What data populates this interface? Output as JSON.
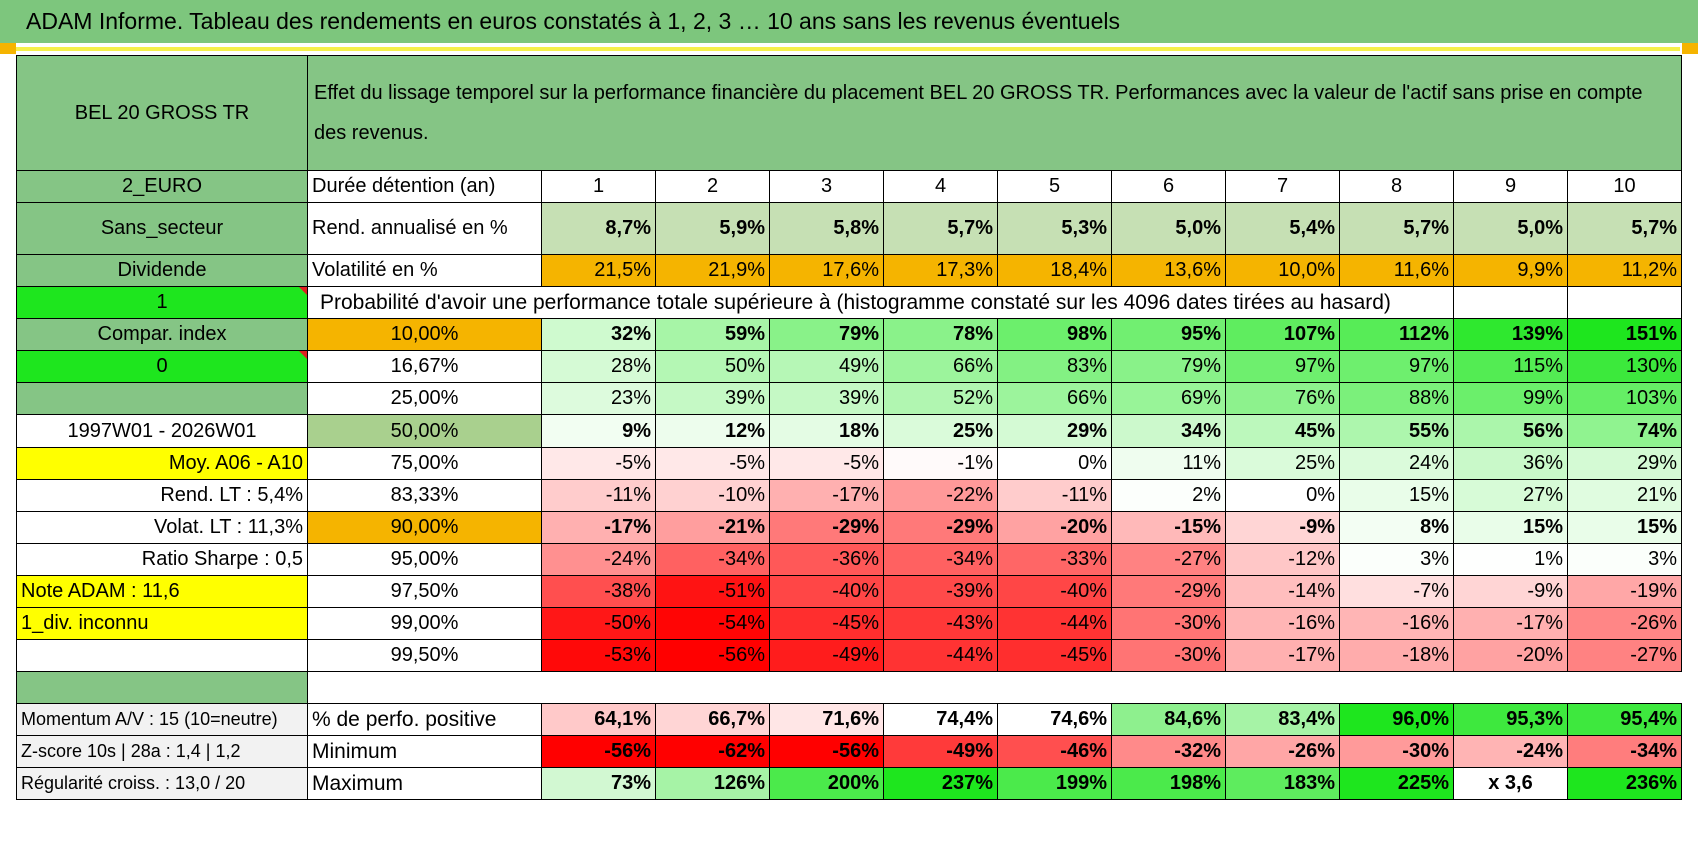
{
  "banner": "ADAM Informe. Tableau des rendements en euros constatés à 1, 2, 3 … 10 ans sans les revenus éventuels",
  "fund_name": "BEL 20 GROSS TR",
  "description": "Effet du lissage temporel sur la performance financière du placement BEL 20 GROSS TR. Performances avec la valeur de l'actif sans prise en compte des revenus.",
  "side": {
    "currency": "2_EURO",
    "sector": "Sans_secteur",
    "dividend": "Dividende",
    "dividend_value": "1",
    "compar_index": "Compar. index",
    "compar_value": "0",
    "period": "1997W01 - 2026W01",
    "moy": "Moy. A06 - A10",
    "rend_lt": "Rend. LT :   5,4%",
    "volat_lt": "Volat. LT :   11,3%",
    "sharpe": "Ratio Sharpe :    0,5",
    "note": "Note ADAM : 11,6",
    "div_unknown": "1_div. inconnu"
  },
  "header": {
    "duration_label": "Durée détention (an)",
    "years": [
      "1",
      "2",
      "3",
      "4",
      "5",
      "6",
      "7",
      "8",
      "9",
      "10"
    ]
  },
  "rend_row": {
    "label": "Rend. annualisé en %",
    "values": [
      "8,7%",
      "5,9%",
      "5,8%",
      "5,7%",
      "5,3%",
      "5,0%",
      "5,4%",
      "5,7%",
      "5,0%",
      "5,7%"
    ]
  },
  "vol_row": {
    "label": "Volatilité en %",
    "values": [
      "21,5%",
      "21,9%",
      "17,6%",
      "17,3%",
      "18,4%",
      "13,6%",
      "10,0%",
      "11,6%",
      "9,9%",
      "11,2%"
    ]
  },
  "prob_title": "Probabilité d'avoir une performance totale supérieure à (histogramme constaté sur les 4096 dates tirées au hasard)",
  "prob_rows": [
    {
      "pct": "10,00%",
      "values": [
        "32%",
        "59%",
        "79%",
        "78%",
        "98%",
        "95%",
        "107%",
        "112%",
        "139%",
        "151%"
      ]
    },
    {
      "pct": "16,67%",
      "values": [
        "28%",
        "50%",
        "49%",
        "66%",
        "83%",
        "79%",
        "97%",
        "97%",
        "115%",
        "130%"
      ]
    },
    {
      "pct": "25,00%",
      "values": [
        "23%",
        "39%",
        "39%",
        "52%",
        "66%",
        "69%",
        "76%",
        "88%",
        "99%",
        "103%"
      ]
    },
    {
      "pct": "50,00%",
      "values": [
        "9%",
        "12%",
        "18%",
        "25%",
        "29%",
        "34%",
        "45%",
        "55%",
        "56%",
        "74%"
      ]
    },
    {
      "pct": "75,00%",
      "values": [
        "-5%",
        "-5%",
        "-5%",
        "-1%",
        "0%",
        "11%",
        "25%",
        "24%",
        "36%",
        "29%"
      ]
    },
    {
      "pct": "83,33%",
      "values": [
        "-11%",
        "-10%",
        "-17%",
        "-22%",
        "-11%",
        "2%",
        "0%",
        "15%",
        "27%",
        "21%"
      ]
    },
    {
      "pct": "90,00%",
      "values": [
        "-17%",
        "-21%",
        "-29%",
        "-29%",
        "-20%",
        "-15%",
        "-9%",
        "8%",
        "15%",
        "15%"
      ]
    },
    {
      "pct": "95,00%",
      "values": [
        "-24%",
        "-34%",
        "-36%",
        "-34%",
        "-33%",
        "-27%",
        "-12%",
        "3%",
        "1%",
        "3%"
      ]
    },
    {
      "pct": "97,50%",
      "values": [
        "-38%",
        "-51%",
        "-40%",
        "-39%",
        "-40%",
        "-29%",
        "-14%",
        "-7%",
        "-9%",
        "-19%"
      ]
    },
    {
      "pct": "99,00%",
      "values": [
        "-50%",
        "-54%",
        "-45%",
        "-43%",
        "-44%",
        "-30%",
        "-16%",
        "-16%",
        "-17%",
        "-26%"
      ]
    },
    {
      "pct": "99,50%",
      "values": [
        "-53%",
        "-56%",
        "-49%",
        "-44%",
        "-45%",
        "-30%",
        "-17%",
        "-18%",
        "-20%",
        "-27%"
      ]
    }
  ],
  "stats": [
    {
      "side": "Momentum A/V : 15 (10=neutre)",
      "label": "% de perfo. positive",
      "values": [
        "64,1%",
        "66,7%",
        "71,6%",
        "74,4%",
        "74,6%",
        "84,6%",
        "83,4%",
        "96,0%",
        "95,3%",
        "95,4%"
      ]
    },
    {
      "side": "Z-score 10s | 28a : 1,4 | 1,2",
      "label": "Minimum",
      "values": [
        "-56%",
        "-62%",
        "-56%",
        "-49%",
        "-46%",
        "-32%",
        "-26%",
        "-30%",
        "-24%",
        "-34%"
      ]
    },
    {
      "side": "Régularité croiss. : 13,0 / 20",
      "label": "Maximum",
      "values": [
        "73%",
        "126%",
        "200%",
        "237%",
        "199%",
        "198%",
        "183%",
        "225%",
        "x 3,6",
        "236%"
      ]
    }
  ],
  "colors": {
    "banner": "#7dc67d",
    "label_green": "#85c585",
    "bright_green": "#1ee61e",
    "orange": "#f5b400",
    "yellow": "#ffff00",
    "red_text": "#d00000"
  }
}
